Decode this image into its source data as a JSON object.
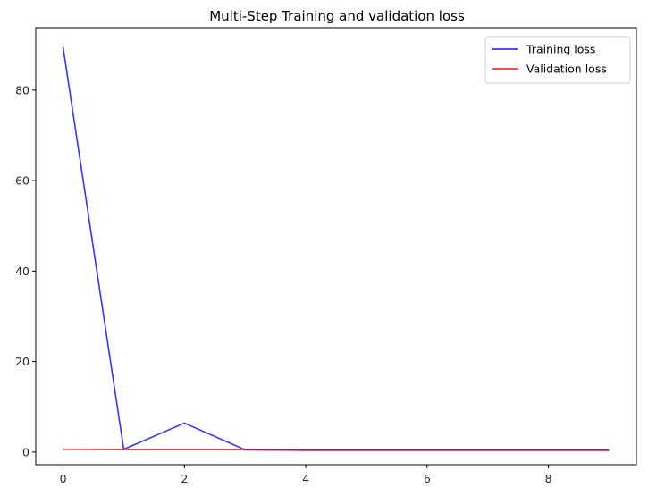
{
  "chart_data": {
    "type": "line",
    "title": "Multi-Step Training and validation loss",
    "xlabel": "",
    "ylabel": "",
    "x": [
      0,
      1,
      2,
      3,
      4,
      5,
      6,
      7,
      8,
      9
    ],
    "xlim": [
      -0.45,
      9.45
    ],
    "ylim": [
      -2.8,
      93.8
    ],
    "x_ticks": [
      0,
      2,
      4,
      6,
      8
    ],
    "y_ticks": [
      0,
      20,
      40,
      60,
      80
    ],
    "grid": false,
    "legend_position": "upper right",
    "series": [
      {
        "name": "Training loss",
        "color": "#0000ff",
        "values": [
          89.5,
          0.6,
          6.4,
          0.5,
          0.4,
          0.4,
          0.4,
          0.4,
          0.4,
          0.4
        ]
      },
      {
        "name": "Validation loss",
        "color": "#ff0000",
        "values": [
          0.6,
          0.5,
          0.5,
          0.5,
          0.4,
          0.4,
          0.4,
          0.4,
          0.4,
          0.4
        ]
      }
    ]
  }
}
